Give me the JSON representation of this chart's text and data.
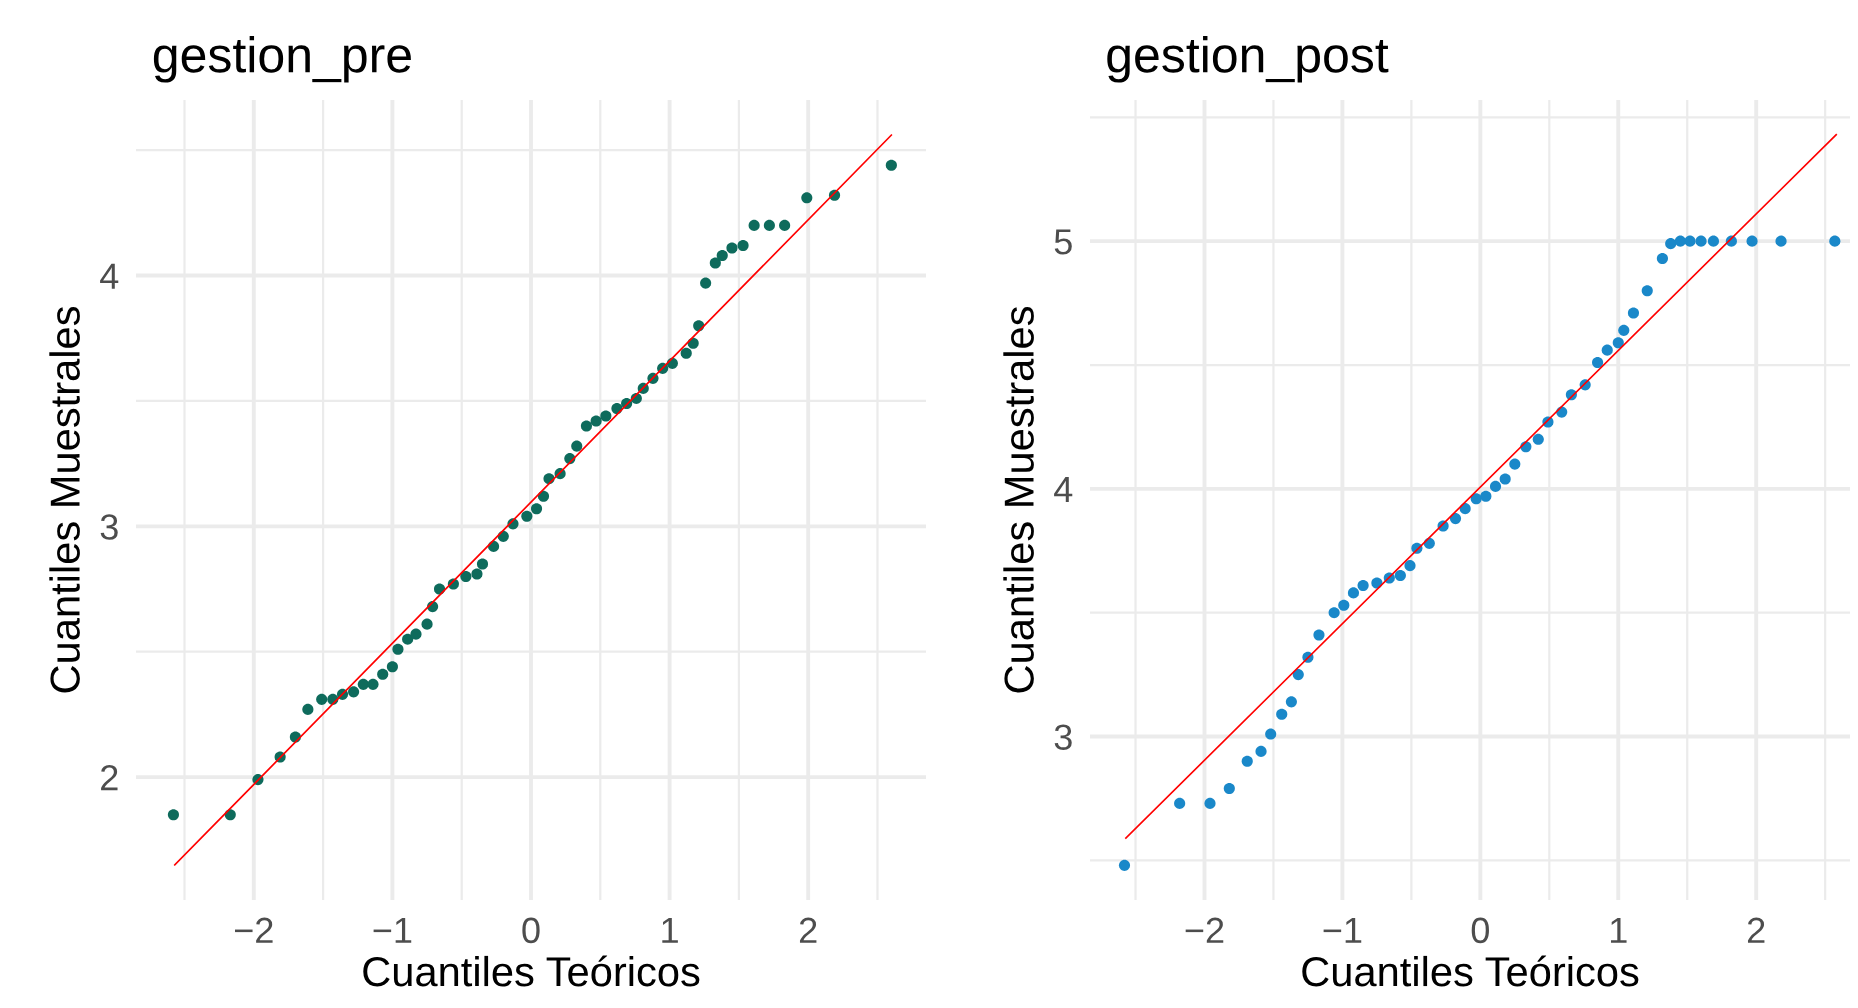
{
  "chart_data": [
    {
      "type": "scatter",
      "title": "gestion_pre",
      "xlabel": "Cuantiles Teóricos",
      "ylabel": "Cuantiles Muestrales",
      "xlim": [
        -2.85,
        2.85
      ],
      "ylim": [
        1.51,
        4.7
      ],
      "xticks": [
        {
          "value": -2.5,
          "label": null
        },
        -2,
        {
          "value": -1.5,
          "label": null
        },
        -1,
        {
          "value": -0.5,
          "label": null
        },
        0,
        {
          "value": 0.5,
          "label": null
        },
        1,
        {
          "value": 1.5,
          "label": null
        },
        2,
        {
          "value": 2.5,
          "label": null
        }
      ],
      "yticks": [
        2,
        {
          "value": 2.5,
          "label": null
        },
        3,
        {
          "value": 3.5,
          "label": null
        },
        4,
        {
          "value": 4.5,
          "label": null
        }
      ],
      "grid": true,
      "series": [
        {
          "marker": "circle",
          "color": "#0e6b5c",
          "x": [
            -2.58,
            -2.17,
            -1.97,
            -1.81,
            -1.7,
            -1.61,
            -1.51,
            -1.43,
            -1.36,
            -1.28,
            -1.21,
            -1.14,
            -1.07,
            -1.0,
            -0.96,
            -0.89,
            -0.83,
            -0.75,
            -0.71,
            -0.66,
            -0.56,
            -0.47,
            -0.39,
            -0.35,
            -0.27,
            -0.2,
            -0.13,
            -0.03,
            0.04,
            0.09,
            0.13,
            0.21,
            0.28,
            0.33,
            0.4,
            0.47,
            0.54,
            0.62,
            0.69,
            0.76,
            0.81,
            0.88,
            0.95,
            1.02,
            1.12,
            1.17,
            1.21,
            1.26,
            1.33,
            1.38,
            1.45,
            1.53,
            1.61,
            1.72,
            1.83,
            1.99,
            2.19,
            2.6
          ],
          "values": [
            1.85,
            1.85,
            1.99,
            2.08,
            2.16,
            2.27,
            2.31,
            2.31,
            2.33,
            2.34,
            2.37,
            2.37,
            2.41,
            2.44,
            2.51,
            2.55,
            2.57,
            2.61,
            2.68,
            2.75,
            2.77,
            2.8,
            2.81,
            2.85,
            2.92,
            2.96,
            3.01,
            3.04,
            3.07,
            3.12,
            3.19,
            3.21,
            3.27,
            3.32,
            3.4,
            3.42,
            3.44,
            3.47,
            3.49,
            3.51,
            3.55,
            3.59,
            3.63,
            3.65,
            3.69,
            3.73,
            3.8,
            3.97,
            4.05,
            4.08,
            4.11,
            4.12,
            4.2,
            4.2,
            4.2,
            4.31,
            4.32,
            4.44
          ]
        },
        {
          "type": "line",
          "color": "#ff0000",
          "x": [
            -2.57,
            2.6
          ],
          "values": [
            1.65,
            4.56
          ]
        }
      ]
    },
    {
      "type": "scatter",
      "title": "gestion_post",
      "xlabel": "Cuantiles Teóricos",
      "ylabel": "Cuantiles Muestrales",
      "xlim": [
        -2.83,
        2.68
      ],
      "ylim": [
        2.34,
        5.57
      ],
      "xticks": [
        {
          "value": -2.5,
          "label": null
        },
        -2,
        {
          "value": -1.5,
          "label": null
        },
        -1,
        {
          "value": -0.5,
          "label": null
        },
        0,
        {
          "value": 0.5,
          "label": null
        },
        1,
        {
          "value": 1.5,
          "label": null
        },
        2,
        {
          "value": 2.5,
          "label": null
        }
      ],
      "yticks": [
        {
          "value": 2.5,
          "label": null
        },
        3,
        {
          "value": 3.5,
          "label": null
        },
        4,
        {
          "value": 4.5,
          "label": null
        },
        5,
        {
          "value": 5.5,
          "label": null
        }
      ],
      "grid": true,
      "series": [
        {
          "marker": "circle",
          "color": "#1a88c9",
          "x": [
            -2.58,
            -2.18,
            -1.96,
            -1.82,
            -1.69,
            -1.59,
            -1.52,
            -1.44,
            -1.37,
            -1.32,
            -1.25,
            -1.17,
            -1.06,
            -0.99,
            -0.92,
            -0.85,
            -0.75,
            -0.66,
            -0.58,
            -0.51,
            -0.46,
            -0.37,
            -0.27,
            -0.18,
            -0.11,
            -0.03,
            0.04,
            0.11,
            0.18,
            0.25,
            0.33,
            0.42,
            0.49,
            0.59,
            0.66,
            0.76,
            0.85,
            0.92,
            1.0,
            1.04,
            1.11,
            1.21,
            1.32,
            1.38,
            1.45,
            1.52,
            1.6,
            1.69,
            1.82,
            1.97,
            2.18,
            2.57
          ],
          "values": [
            2.48,
            2.73,
            2.73,
            2.79,
            2.9,
            2.94,
            3.01,
            3.09,
            3.14,
            3.25,
            3.32,
            3.41,
            3.5,
            3.53,
            3.58,
            3.61,
            3.62,
            3.64,
            3.65,
            3.69,
            3.76,
            3.78,
            3.85,
            3.88,
            3.92,
            3.96,
            3.97,
            4.01,
            4.04,
            4.1,
            4.17,
            4.2,
            4.27,
            4.31,
            4.38,
            4.42,
            4.51,
            4.56,
            4.59,
            4.64,
            4.71,
            4.8,
            4.93,
            4.99,
            5.0,
            5.0,
            5.0,
            5.0,
            5.0,
            5.0,
            5.0,
            5.0
          ]
        },
        {
          "type": "line",
          "color": "#ff0000",
          "x": [
            -2.57,
            2.58
          ],
          "values": [
            2.59,
            5.43
          ]
        }
      ]
    }
  ]
}
